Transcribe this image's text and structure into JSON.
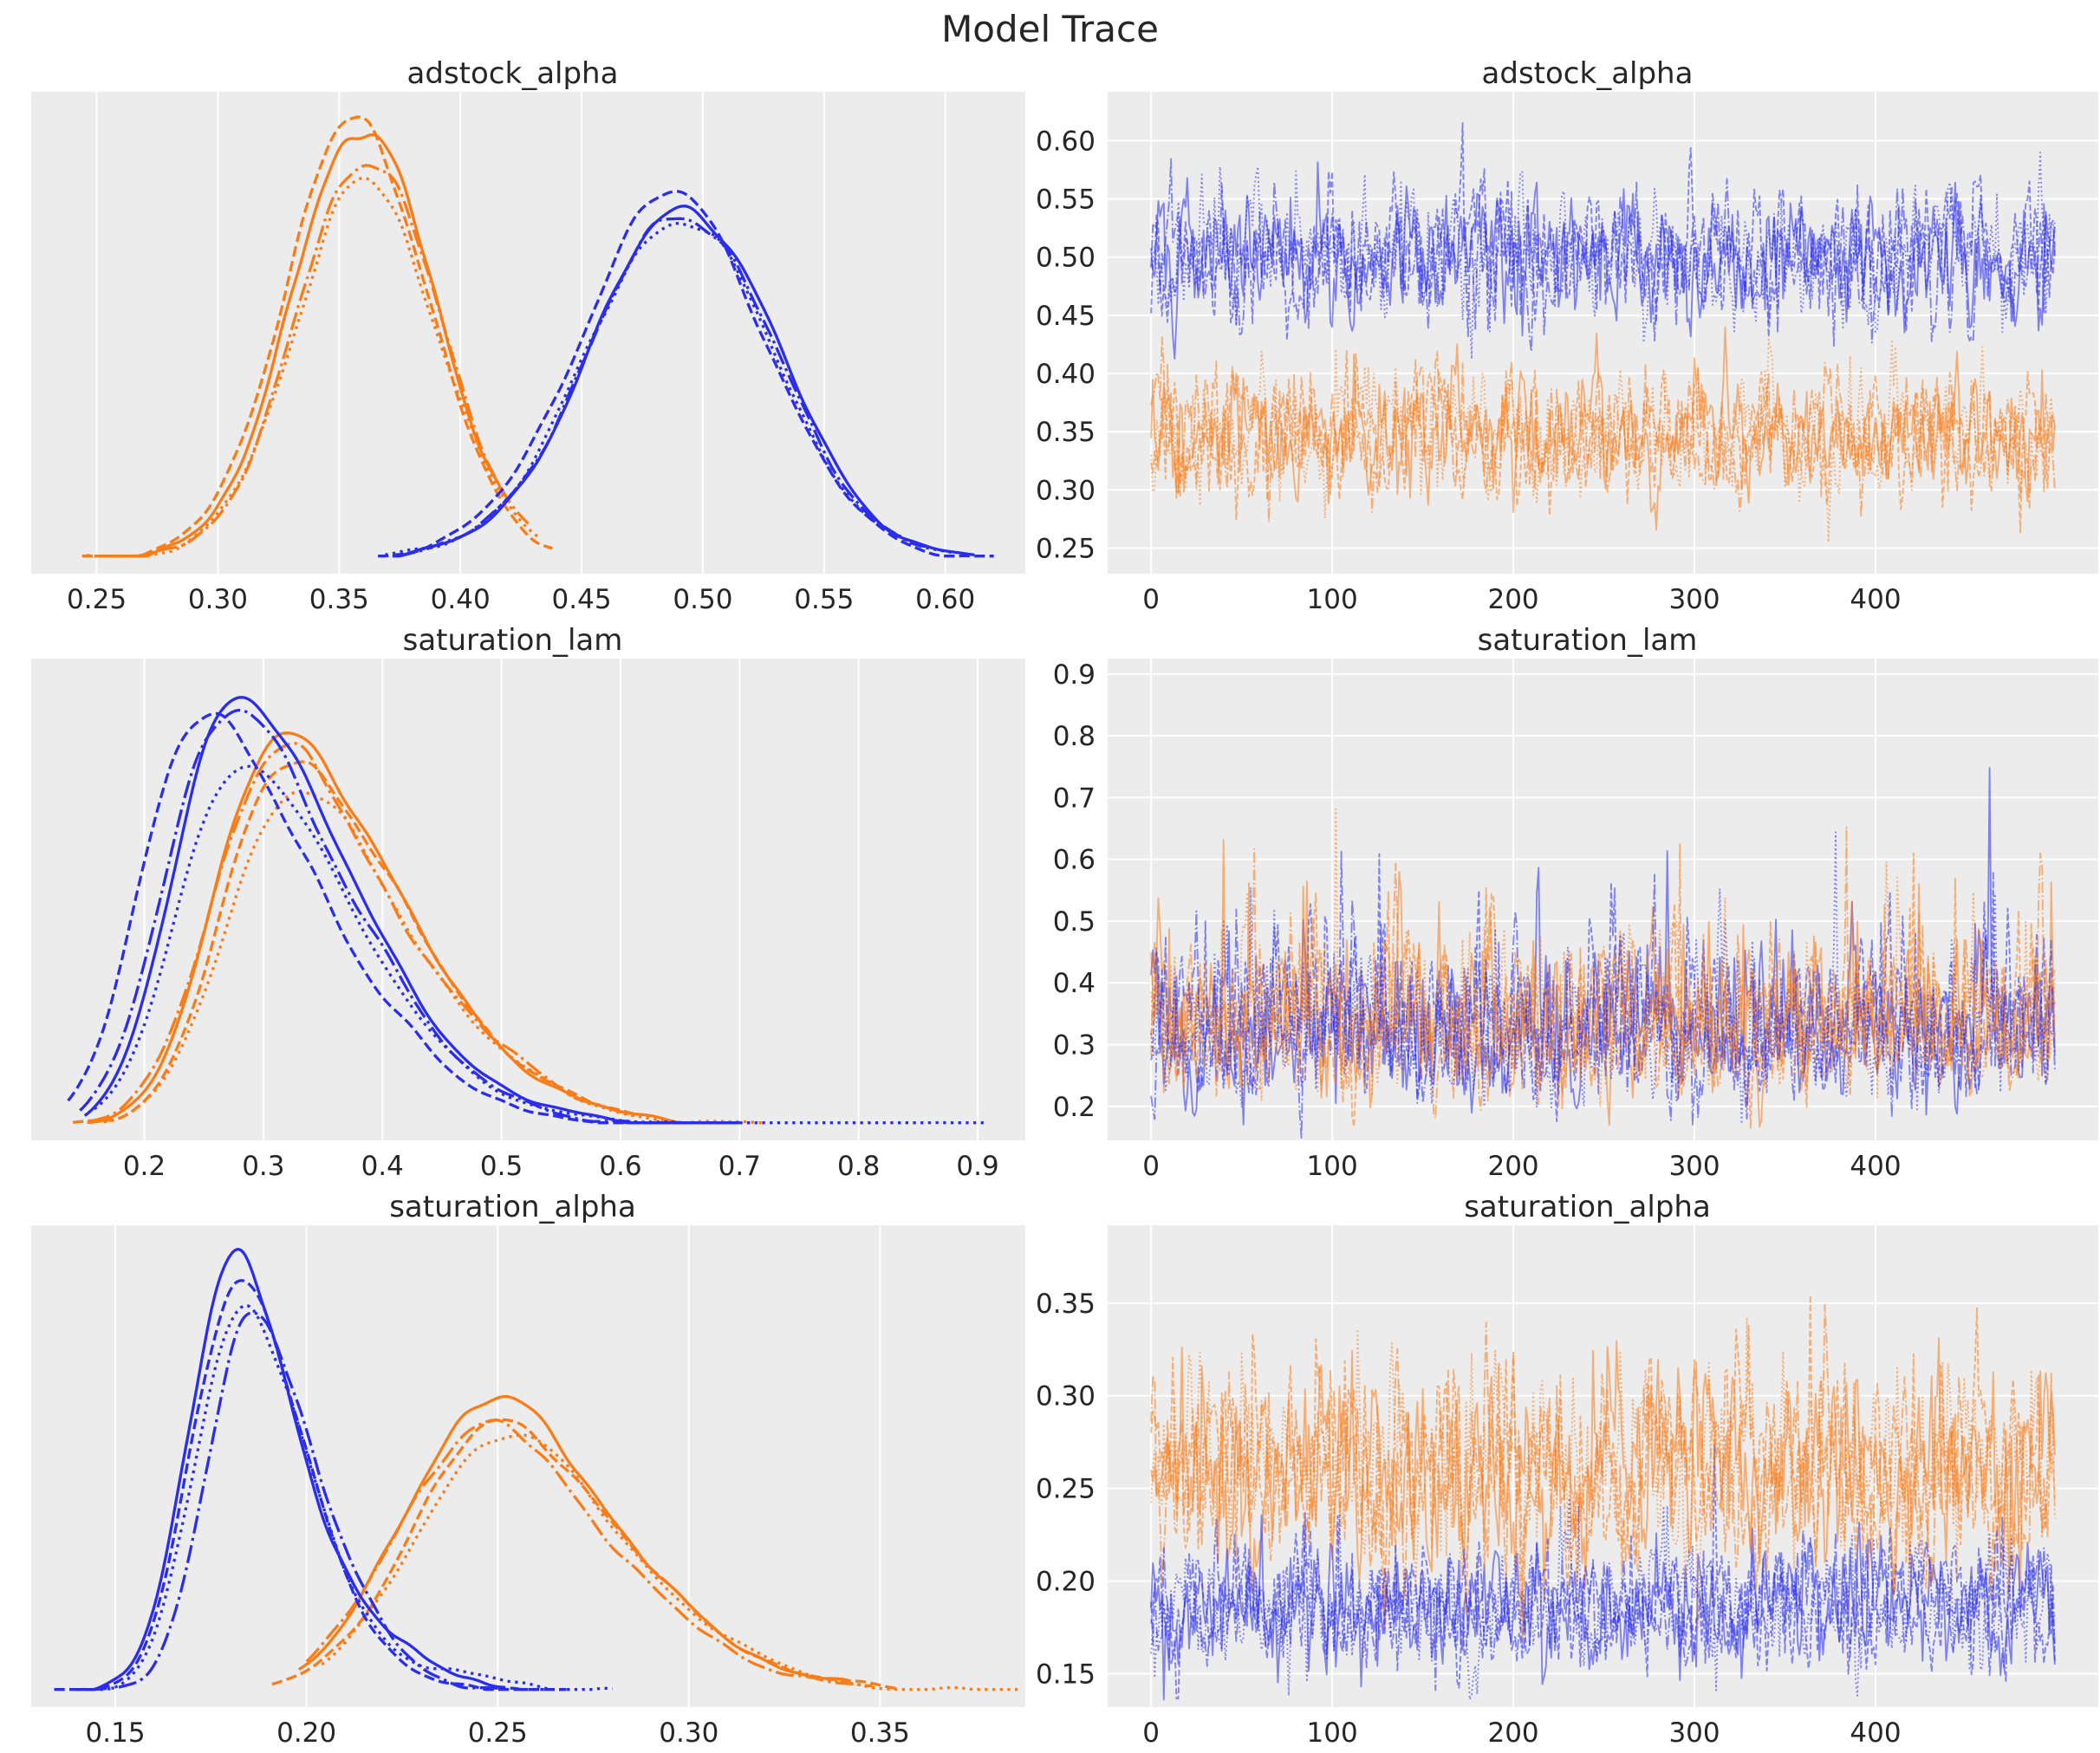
{
  "figure": {
    "title": "Model Trace"
  },
  "style": {
    "plot_bg": "#ececec",
    "grid_color": "#ffffff",
    "text_color": "#262626",
    "page_bg": "#ffffff",
    "series_colors": {
      "blue": "#2a2eec",
      "orange": "#fa7c17"
    },
    "kde_line_width": 3.3,
    "trace_line_width": 1.9,
    "trace_alpha": 0.55,
    "n_chains": 4,
    "chain_styles": [
      "solid",
      "dashed",
      "dashdot",
      "dotted"
    ]
  },
  "chart_data": [
    {
      "variable": "adstock_alpha",
      "kde": {
        "type": "line",
        "subtype": "kde-density",
        "grid": "vertical-only",
        "xlim": [
          0.223,
          0.633
        ],
        "xticks": [
          0.25,
          0.3,
          0.35,
          0.4,
          0.45,
          0.5,
          0.55,
          0.6
        ],
        "xtick_labels": [
          "0.25",
          "0.30",
          "0.35",
          "0.40",
          "0.45",
          "0.50",
          "0.55",
          "0.60"
        ],
        "series": [
          {
            "name": "orange",
            "color": "#fa7c17",
            "mode": 0.35,
            "loc": 0.349,
            "scale": 0.0315,
            "skew": 0.5,
            "data_min": 0.244,
            "data_max": 0.438,
            "chains": [
              {
                "style": "solid",
                "shift": 0,
                "peak": 0.97,
                "xmin": 0.256,
                "xmax": 0.418
              },
              {
                "style": "dashed",
                "shift": -0.003,
                "peak": 0.985,
                "xmin": 0.244,
                "xmax": 0.438
              },
              {
                "style": "dashdot",
                "shift": 0.002,
                "peak": 0.9,
                "xmin": 0.251,
                "xmax": 0.428
              },
              {
                "style": "dotted",
                "shift": 0.001,
                "peak": 0.845,
                "xmin": 0.246,
                "xmax": 0.433
              }
            ]
          },
          {
            "name": "blue",
            "color": "#2a2eec",
            "mode": 0.505,
            "loc": 0.507,
            "scale": 0.041,
            "skew": -0.5,
            "data_min": 0.366,
            "data_max": 0.62,
            "chains": [
              {
                "style": "solid",
                "shift": 0,
                "peak": 0.79,
                "xmin": 0.372,
                "xmax": 0.612
              },
              {
                "style": "dashed",
                "shift": -0.005,
                "peak": 0.815,
                "xmin": 0.366,
                "xmax": 0.62
              },
              {
                "style": "dashdot",
                "shift": -0.001,
                "peak": 0.775,
                "xmin": 0.374,
                "xmax": 0.592
              },
              {
                "style": "dotted",
                "shift": -0.002,
                "peak": 0.765,
                "xmin": 0.369,
                "xmax": 0.604
              }
            ]
          }
        ]
      },
      "trace": {
        "type": "line",
        "subtype": "mcmc-trace",
        "grid": "both",
        "n_draws": 500,
        "xlim": [
          -24,
          523
        ],
        "xticks": [
          0,
          100,
          200,
          300,
          400
        ],
        "xtick_labels": [
          "0",
          "100",
          "200",
          "300",
          "400"
        ],
        "ylim": [
          0.228,
          0.642
        ],
        "yticks": [
          0.25,
          0.3,
          0.35,
          0.4,
          0.45,
          0.5,
          0.55,
          0.6
        ],
        "ytick_labels": [
          "0.25",
          "0.30",
          "0.35",
          "0.40",
          "0.45",
          "0.50",
          "0.55",
          "0.60"
        ],
        "series": [
          {
            "name": "blue",
            "color": "#2a2eec",
            "dist": "normal",
            "center": 0.503,
            "sd": 0.0285,
            "observed_range": [
              0.4,
              0.62
            ],
            "chain_shifts": [
              0,
              0.002,
              -0.002,
              0.001
            ],
            "spike_prob": 0,
            "spike_add": 0
          },
          {
            "name": "orange",
            "color": "#fa7c17",
            "dist": "normal",
            "center": 0.346,
            "sd": 0.027,
            "observed_range": [
              0.25,
              0.425
            ],
            "chain_shifts": [
              0,
              -0.002,
              0.002,
              -0.001
            ],
            "spike_prob": 0,
            "spike_add": 0
          }
        ]
      }
    },
    {
      "variable": "saturation_lam",
      "kde": {
        "type": "line",
        "subtype": "kde-density",
        "grid": "vertical-only",
        "xlim": [
          0.105,
          0.94
        ],
        "xticks": [
          0.2,
          0.3,
          0.4,
          0.5,
          0.6,
          0.7,
          0.8,
          0.9
        ],
        "xtick_labels": [
          "0.2",
          "0.3",
          "0.4",
          "0.5",
          "0.6",
          "0.7",
          "0.8",
          "0.9"
        ],
        "series": [
          {
            "name": "orange",
            "color": "#fa7c17",
            "mode": 0.345,
            "loc": 0.262,
            "scale": 0.125,
            "skew": 2.8,
            "data_min": 0.14,
            "data_max": 0.722,
            "chains": [
              {
                "style": "solid",
                "shift": 0,
                "peak": 0.88,
                "xmin": 0.152,
                "xmax": 0.672
              },
              {
                "style": "dashed",
                "shift": 0.006,
                "peak": 0.82,
                "xmin": 0.14,
                "xmax": 0.615
              },
              {
                "style": "dashdot",
                "shift": -0.004,
                "peak": 0.84,
                "xmin": 0.156,
                "xmax": 0.612,
                "bump": {
                  "at": 0.52,
                  "w": 0.03,
                  "h": 0.03
                }
              },
              {
                "style": "dotted",
                "shift": 0.008,
                "peak": 0.75,
                "xmin": 0.166,
                "xmax": 0.722
              }
            ]
          },
          {
            "name": "blue",
            "color": "#2a2eec",
            "mode": 0.305,
            "loc": 0.227,
            "scale": 0.12,
            "skew": 3.0,
            "data_min": 0.136,
            "data_max": 0.905,
            "chains": [
              {
                "style": "solid",
                "shift": 0,
                "peak": 0.97,
                "xmin": 0.15,
                "xmax": 0.7
              },
              {
                "style": "dashed",
                "shift": -0.028,
                "peak": 0.93,
                "xmin": 0.136,
                "xmax": 0.645,
                "bump": {
                  "at": 0.43,
                  "w": 0.022,
                  "h": 0.03
                }
              },
              {
                "style": "dashdot",
                "shift": -0.008,
                "peak": 0.945,
                "xmin": 0.146,
                "xmax": 0.662,
                "bump": {
                  "at": 0.41,
                  "w": 0.02,
                  "h": 0.045
                }
              },
              {
                "style": "dotted",
                "shift": 0.002,
                "peak": 0.82,
                "xmin": 0.158,
                "xmax": 0.905
              }
            ]
          }
        ]
      },
      "trace": {
        "type": "line",
        "subtype": "mcmc-trace",
        "grid": "both",
        "n_draws": 500,
        "xlim": [
          -24,
          523
        ],
        "xticks": [
          0,
          100,
          200,
          300,
          400
        ],
        "xtick_labels": [
          "0",
          "100",
          "200",
          "300",
          "400"
        ],
        "ylim": [
          0.145,
          0.925
        ],
        "yticks": [
          0.2,
          0.3,
          0.4,
          0.5,
          0.6,
          0.7,
          0.8,
          0.9
        ],
        "ytick_labels": [
          "0.2",
          "0.3",
          "0.4",
          "0.5",
          "0.6",
          "0.7",
          "0.8",
          "0.9"
        ],
        "series": [
          {
            "name": "blue",
            "color": "#2a2eec",
            "dist": "lognormal",
            "center": 0.322,
            "sigma": 0.205,
            "observed_range": [
              0.16,
              0.905
            ],
            "chain_shifts": [
              0,
              0.004,
              -0.004,
              0.002
            ],
            "spike_prob": 0.004,
            "spike_gain": 1.9
          },
          {
            "name": "orange",
            "color": "#fa7c17",
            "dist": "lognormal",
            "center": 0.333,
            "sigma": 0.195,
            "observed_range": [
              0.17,
              0.71
            ],
            "chain_shifts": [
              0,
              -0.004,
              0.004,
              -0.002
            ],
            "spike_prob": 0.004,
            "spike_gain": 1.8
          }
        ]
      }
    },
    {
      "variable": "saturation_alpha",
      "kde": {
        "type": "line",
        "subtype": "kde-density",
        "grid": "vertical-only",
        "xlim": [
          0.128,
          0.388
        ],
        "xticks": [
          0.15,
          0.2,
          0.25,
          0.3,
          0.35
        ],
        "xtick_labels": [
          "0.15",
          "0.20",
          "0.25",
          "0.30",
          "0.35"
        ],
        "series": [
          {
            "name": "orange",
            "color": "#fa7c17",
            "mode": 0.25,
            "loc": 0.228,
            "scale": 0.041,
            "skew": 2.0,
            "data_min": 0.191,
            "data_max": 0.386,
            "chains": [
              {
                "style": "solid",
                "shift": 0,
                "peak": 0.655,
                "xmin": 0.198,
                "xmax": 0.342
              },
              {
                "style": "dashed",
                "shift": 0.002,
                "peak": 0.6,
                "xmin": 0.191,
                "xmax": 0.355
              },
              {
                "style": "dashdot",
                "shift": -0.002,
                "peak": 0.595,
                "xmin": 0.2,
                "xmax": 0.348
              },
              {
                "style": "dotted",
                "shift": 0.003,
                "peak": 0.575,
                "xmin": 0.204,
                "xmax": 0.386
              }
            ]
          },
          {
            "name": "blue",
            "color": "#2a2eec",
            "mode": 0.182,
            "loc": 0.17,
            "scale": 0.0225,
            "skew": 2.2,
            "data_min": 0.134,
            "data_max": 0.28,
            "chains": [
              {
                "style": "solid",
                "shift": 0,
                "peak": 0.97,
                "xmin": 0.14,
                "xmax": 0.252,
                "bump": {
                  "at": 0.228,
                  "w": 0.011,
                  "h": 0.05
                }
              },
              {
                "style": "dashed",
                "shift": 0.001,
                "peak": 0.93,
                "xmin": 0.134,
                "xmax": 0.268
              },
              {
                "style": "dashdot",
                "shift": 0.005,
                "peak": 0.84,
                "xmin": 0.143,
                "xmax": 0.262
              },
              {
                "style": "dotted",
                "shift": 0.002,
                "peak": 0.87,
                "xmin": 0.146,
                "xmax": 0.28,
                "bump": {
                  "at": 0.243,
                  "w": 0.014,
                  "h": 0.03
                }
              }
            ]
          }
        ]
      },
      "trace": {
        "type": "line",
        "subtype": "mcmc-trace",
        "grid": "both",
        "n_draws": 500,
        "xlim": [
          -24,
          523
        ],
        "xticks": [
          0,
          100,
          200,
          300,
          400
        ],
        "xtick_labels": [
          "0",
          "100",
          "200",
          "300",
          "400"
        ],
        "ylim": [
          0.132,
          0.392
        ],
        "yticks": [
          0.15,
          0.2,
          0.25,
          0.3,
          0.35
        ],
        "ytick_labels": [
          "0.15",
          "0.20",
          "0.25",
          "0.30",
          "0.35"
        ],
        "series": [
          {
            "name": "orange",
            "color": "#fa7c17",
            "dist": "normal",
            "center": 0.259,
            "sd": 0.0275,
            "observed_range": [
              0.2,
              0.385
            ],
            "chain_shifts": [
              0,
              0.002,
              -0.002,
              0.001
            ],
            "spike_prob": 0.012,
            "spike_add": 0.05
          },
          {
            "name": "blue",
            "color": "#2a2eec",
            "dist": "normal",
            "center": 0.1865,
            "sd": 0.017,
            "observed_range": [
              0.143,
              0.26
            ],
            "chain_shifts": [
              0,
              -0.002,
              0.002,
              -0.001
            ],
            "spike_prob": 0.008,
            "spike_add": 0.035
          }
        ]
      }
    }
  ]
}
